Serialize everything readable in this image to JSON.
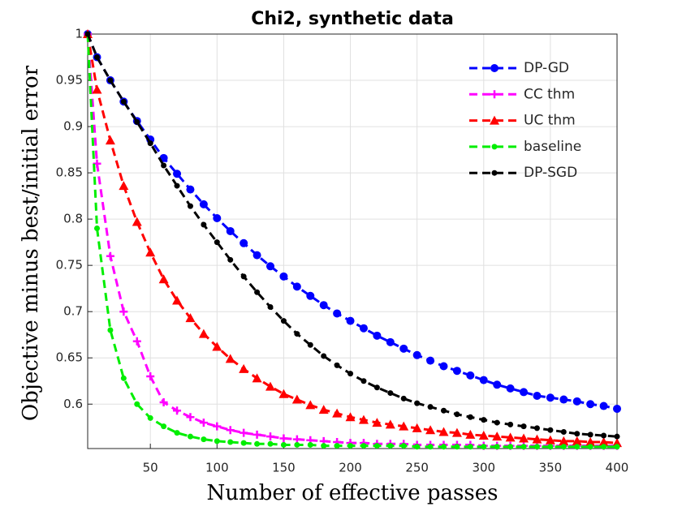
{
  "chart_data": {
    "type": "line",
    "title": "Chi2, synthetic data",
    "xlabel": "Number of effective passes",
    "ylabel": "Objective minus best/initial error",
    "x": [
      3,
      10,
      20,
      30,
      40,
      50,
      60,
      70,
      80,
      90,
      100,
      110,
      120,
      130,
      140,
      150,
      160,
      170,
      180,
      190,
      200,
      210,
      220,
      230,
      240,
      250,
      260,
      270,
      280,
      290,
      300,
      310,
      320,
      330,
      340,
      350,
      360,
      370,
      380,
      390,
      400
    ],
    "series": [
      {
        "name": "DP-GD",
        "color": "#0000ff",
        "marker": "circle",
        "values": [
          1,
          0.975,
          0.95,
          0.927,
          0.906,
          0.886,
          0.866,
          0.849,
          0.832,
          0.816,
          0.801,
          0.787,
          0.774,
          0.761,
          0.749,
          0.738,
          0.727,
          0.717,
          0.707,
          0.698,
          0.69,
          0.682,
          0.674,
          0.667,
          0.66,
          0.653,
          0.647,
          0.641,
          0.636,
          0.631,
          0.626,
          0.621,
          0.617,
          0.613,
          0.609,
          0.607,
          0.605,
          0.603,
          0.6,
          0.598,
          0.595
        ]
      },
      {
        "name": "CC thm",
        "color": "#ff00ff",
        "marker": "plus",
        "values": [
          1,
          0.86,
          0.76,
          0.7,
          0.668,
          0.63,
          0.602,
          0.593,
          0.586,
          0.58,
          0.576,
          0.572,
          0.569,
          0.567,
          0.565,
          0.563,
          0.562,
          0.561,
          0.56,
          0.559,
          0.558,
          0.558,
          0.557,
          0.557,
          0.557,
          0.556,
          0.556,
          0.556,
          0.556,
          0.556,
          0.555,
          0.555,
          0.555,
          0.555,
          0.555,
          0.555,
          0.555,
          0.555,
          0.555,
          0.555,
          0.555
        ]
      },
      {
        "name": "UC thm",
        "color": "#ff0000",
        "marker": "triangle",
        "values": [
          1,
          0.94,
          0.885,
          0.836,
          0.797,
          0.764,
          0.735,
          0.712,
          0.693,
          0.676,
          0.662,
          0.649,
          0.638,
          0.628,
          0.619,
          0.611,
          0.605,
          0.599,
          0.594,
          0.59,
          0.586,
          0.583,
          0.58,
          0.578,
          0.576,
          0.574,
          0.572,
          0.57,
          0.569,
          0.567,
          0.566,
          0.565,
          0.564,
          0.563,
          0.562,
          0.561,
          0.56,
          0.56,
          0.559,
          0.559,
          0.558
        ]
      },
      {
        "name": "baseline",
        "color": "#00ee00",
        "marker": "dot",
        "values": [
          1,
          0.79,
          0.68,
          0.628,
          0.6,
          0.585,
          0.576,
          0.569,
          0.565,
          0.562,
          0.56,
          0.559,
          0.558,
          0.557,
          0.557,
          0.556,
          0.556,
          0.556,
          0.555,
          0.555,
          0.555,
          0.555,
          0.555,
          0.555,
          0.555,
          0.554,
          0.554,
          0.554,
          0.554,
          0.554,
          0.554,
          0.554,
          0.554,
          0.554,
          0.554,
          0.554,
          0.554,
          0.554,
          0.554,
          0.554,
          0.554
        ]
      },
      {
        "name": "DP-SGD",
        "color": "#000000",
        "marker": "dot",
        "values": [
          1,
          0.975,
          0.95,
          0.927,
          0.905,
          0.882,
          0.858,
          0.836,
          0.814,
          0.794,
          0.775,
          0.756,
          0.738,
          0.721,
          0.705,
          0.69,
          0.676,
          0.664,
          0.652,
          0.642,
          0.633,
          0.625,
          0.618,
          0.612,
          0.606,
          0.601,
          0.597,
          0.593,
          0.589,
          0.586,
          0.583,
          0.58,
          0.578,
          0.576,
          0.574,
          0.572,
          0.57,
          0.568,
          0.567,
          0.566,
          0.565
        ]
      }
    ],
    "xlim": [
      3,
      400
    ],
    "xticks": [
      50,
      100,
      150,
      200,
      250,
      300,
      350,
      400
    ],
    "ylim": [
      0.552,
      1
    ],
    "yticks": [
      0.6,
      0.65,
      0.7,
      0.75,
      0.8,
      0.85,
      0.9,
      0.95,
      1
    ],
    "grid": true,
    "legend": "upper right"
  }
}
